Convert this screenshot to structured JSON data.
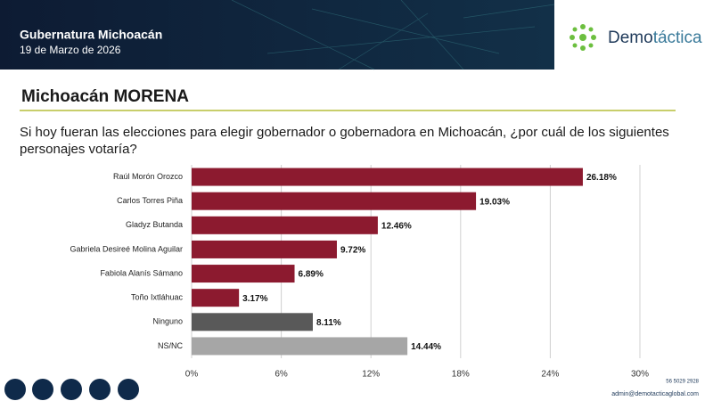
{
  "header": {
    "title": "Gubernatura Michoacán",
    "date": "19 de Marzo de 2026",
    "logo_part1": "Demo",
    "logo_part2": "táctica"
  },
  "chart_data": {
    "type": "hbar",
    "title": "Michoacán MORENA",
    "subtitle": "Si hoy fueran las elecciones para elegir gobernador o gobernadora en Michoacán, ¿por cuál de los siguientes personajes votaría?",
    "categories": [
      "Raúl Morón Orozco",
      "Carlos Torres Piña",
      "Gladyz Butanda",
      "Gabriela Desireé Molina Aguilar",
      "Fabiola Alanís Sámano",
      "Toño Ixtláhuac",
      "Ninguno",
      "NS/NC"
    ],
    "values": [
      26.18,
      19.03,
      12.46,
      9.72,
      6.89,
      3.17,
      8.11,
      14.44
    ],
    "value_labels": [
      "26.18%",
      "19.03%",
      "12.46%",
      "9.72%",
      "6.89%",
      "3.17%",
      "8.11%",
      "14.44%"
    ],
    "colors": [
      "#8c1a2f",
      "#8c1a2f",
      "#8c1a2f",
      "#8c1a2f",
      "#8c1a2f",
      "#8c1a2f",
      "#595959",
      "#a6a6a6"
    ],
    "xlim": [
      0,
      30
    ],
    "xticks": [
      {
        "value": 0,
        "label": "0%"
      },
      {
        "value": 6,
        "label": "6%"
      },
      {
        "value": 12,
        "label": "12%"
      },
      {
        "value": 18,
        "label": "18%"
      },
      {
        "value": 24,
        "label": "24%"
      },
      {
        "value": 30,
        "label": "30%"
      }
    ],
    "grid": true
  },
  "footer": {
    "phone": "56 5029 2928",
    "email": "admin@demotacticaglobal.com"
  }
}
